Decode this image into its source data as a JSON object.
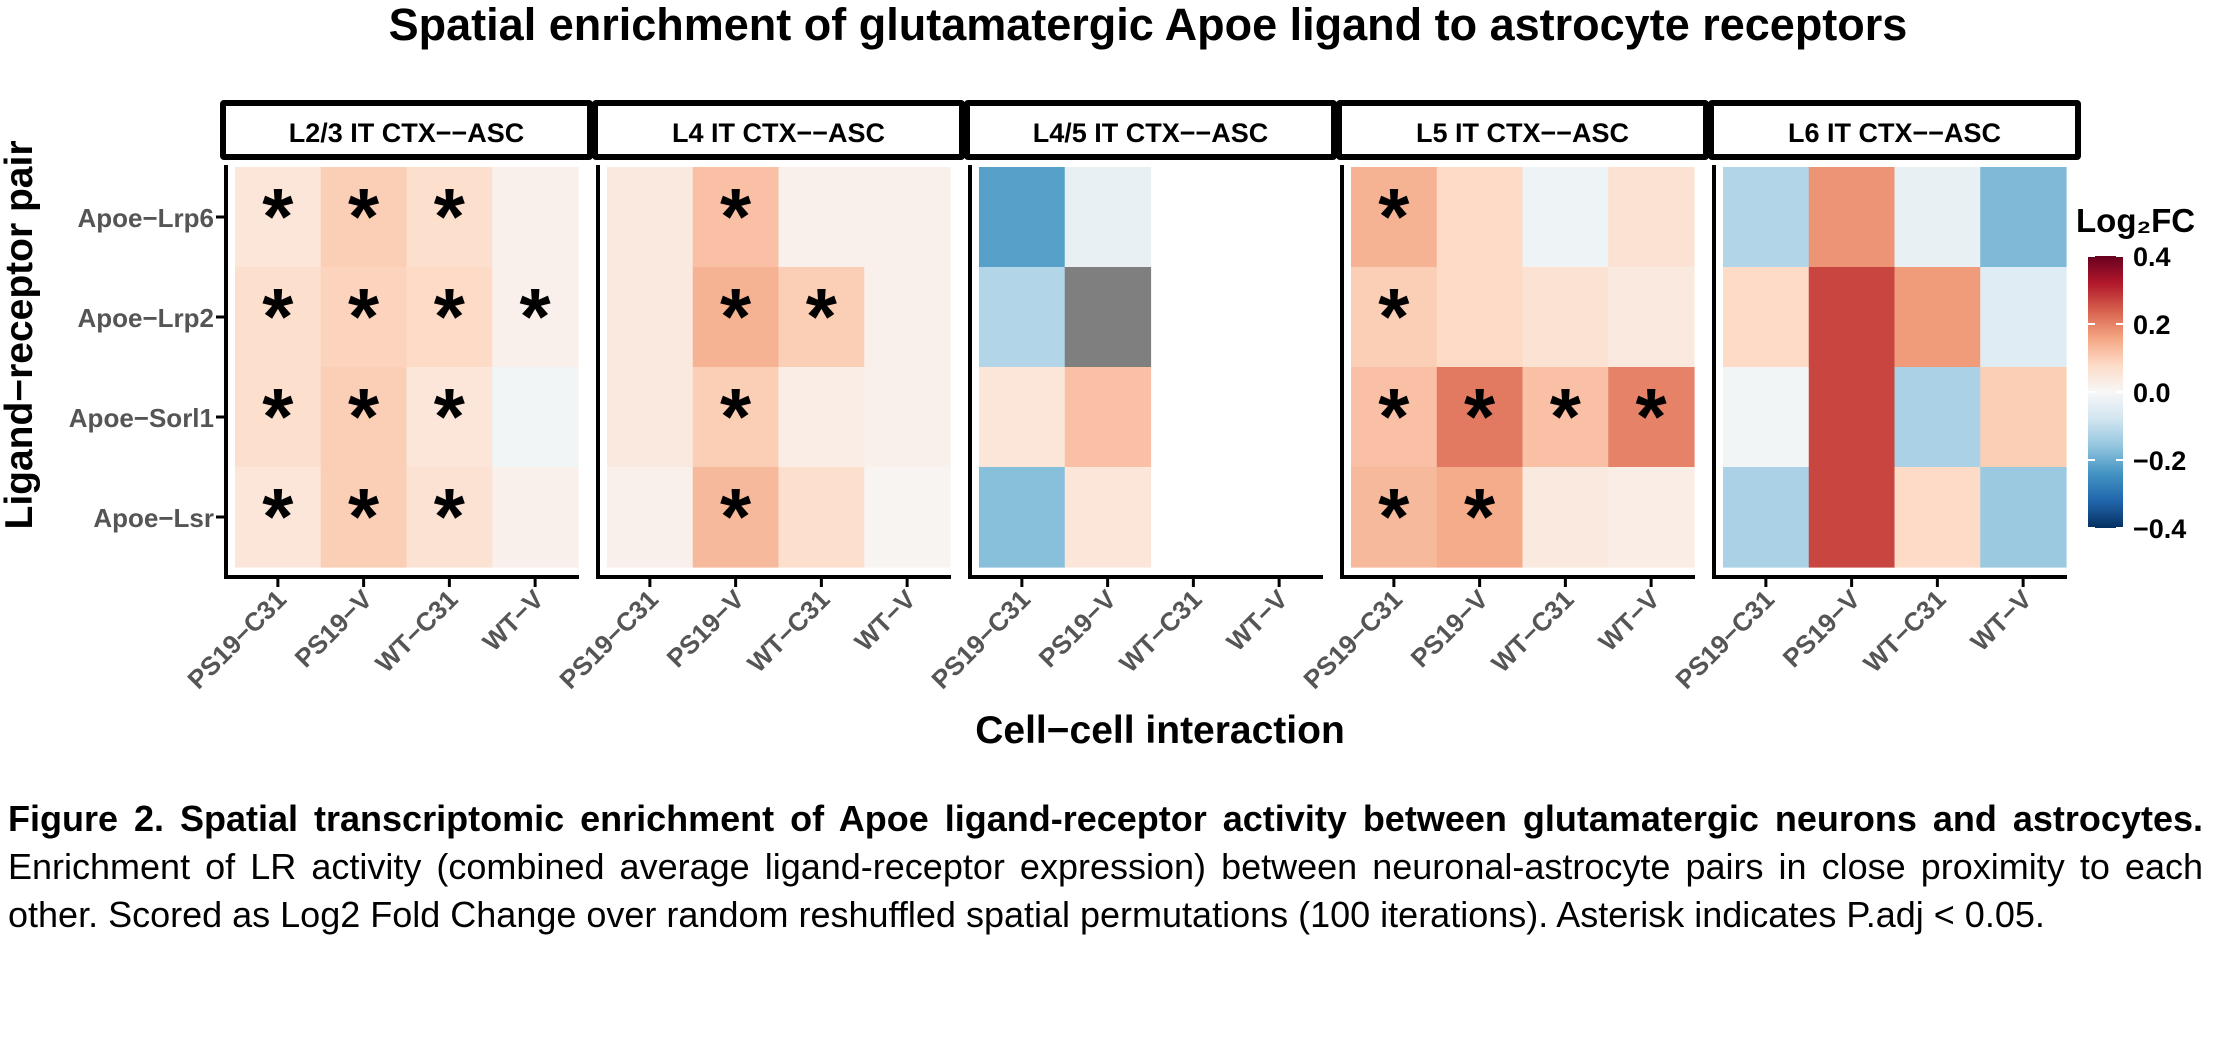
{
  "chart_data": {
    "type": "heatmap",
    "title": "Spatial enrichment of glutamatergic Apoe ligand to astrocyte receptors",
    "xlabel": "Cell−cell interaction",
    "ylabel": "Ligand−receptor pair",
    "x_categories": [
      "PS19−C31",
      "PS19−V",
      "WT−C31",
      "WT−V"
    ],
    "y_categories": [
      "Apoe−Lrp6",
      "Apoe−Lrp2",
      "Apoe−Sorl1",
      "Apoe−Lsr"
    ],
    "legend": {
      "title": "Log₂FC",
      "min": -0.4,
      "max": 0.4,
      "ticks": [
        0.4,
        0.2,
        0.0,
        -0.2,
        -0.4
      ],
      "tick_labels": [
        "0.4",
        "0.2",
        "0.0",
        "−0.2",
        "−0.4"
      ],
      "palette": [
        "#053061",
        "#2166ac",
        "#4393c3",
        "#92c5de",
        "#d1e5f0",
        "#f7f7f7",
        "#fddbc7",
        "#f4a582",
        "#d6604d",
        "#b2182b",
        "#67001f"
      ],
      "na_color": "#7f7f7f",
      "position": "right"
    },
    "significance_marker": "*",
    "panels": [
      {
        "label": "L2/3 IT CTX−−ASC",
        "values": [
          [
            0.05,
            0.1,
            0.07,
            0.02
          ],
          [
            0.07,
            0.09,
            0.08,
            0.02
          ],
          [
            0.07,
            0.1,
            0.05,
            -0.01
          ],
          [
            0.05,
            0.1,
            0.06,
            0.02
          ]
        ],
        "significant": [
          [
            true,
            true,
            true,
            false
          ],
          [
            true,
            true,
            true,
            true
          ],
          [
            true,
            true,
            true,
            false
          ],
          [
            true,
            true,
            true,
            false
          ]
        ]
      },
      {
        "label": "L4 IT CTX−−ASC",
        "values": [
          [
            0.04,
            0.12,
            0.02,
            0.02
          ],
          [
            0.04,
            0.14,
            0.1,
            0.02
          ],
          [
            0.04,
            0.1,
            0.03,
            0.02
          ],
          [
            0.02,
            0.13,
            0.07,
            0.01
          ]
        ],
        "significant": [
          [
            false,
            true,
            false,
            false
          ],
          [
            false,
            true,
            true,
            false
          ],
          [
            false,
            true,
            false,
            false
          ],
          [
            false,
            true,
            false,
            false
          ]
        ]
      },
      {
        "label": "L4/5 IT CTX−−ASC",
        "values": [
          [
            -0.22,
            -0.03,
            null,
            null
          ],
          [
            -0.12,
            "NA",
            null,
            null
          ],
          [
            0.05,
            0.12,
            null,
            null
          ],
          [
            -0.17,
            0.05,
            null,
            null
          ]
        ],
        "significant": [
          [
            false,
            false,
            false,
            false
          ],
          [
            false,
            false,
            false,
            false
          ],
          [
            false,
            false,
            false,
            false
          ],
          [
            false,
            false,
            false,
            false
          ]
        ]
      },
      {
        "label": "L5 IT CTX−−ASC",
        "values": [
          [
            0.14,
            0.08,
            -0.02,
            0.06
          ],
          [
            0.1,
            0.08,
            0.06,
            0.04
          ],
          [
            0.12,
            0.21,
            0.12,
            0.2
          ],
          [
            0.13,
            0.15,
            0.04,
            0.03
          ]
        ],
        "significant": [
          [
            true,
            false,
            false,
            false
          ],
          [
            true,
            false,
            false,
            false
          ],
          [
            true,
            true,
            true,
            true
          ],
          [
            true,
            true,
            false,
            false
          ]
        ]
      },
      {
        "label": "L6 IT CTX−−ASC",
        "values": [
          [
            -0.12,
            0.18,
            -0.03,
            -0.18
          ],
          [
            0.08,
            0.27,
            0.17,
            -0.05
          ],
          [
            -0.01,
            0.27,
            -0.13,
            0.1
          ],
          [
            -0.13,
            0.27,
            0.08,
            -0.15
          ]
        ],
        "significant": [
          [
            false,
            false,
            false,
            false
          ],
          [
            false,
            false,
            false,
            false
          ],
          [
            false,
            false,
            false,
            false
          ],
          [
            false,
            false,
            false,
            false
          ]
        ]
      }
    ]
  },
  "caption": {
    "bold": "Figure 2. Spatial transcriptomic enrichment of Apoe ligand-receptor activity between glutamatergic neurons and astrocytes.",
    "text": " Enrichment of LR activity (combined average ligand-receptor expression) between neuronal-astrocyte pairs in close proximity to each other. Scored as Log2 Fold Change over random reshuffled spatial permutations (100 iterations). Asterisk indicates P.adj < 0.05."
  }
}
